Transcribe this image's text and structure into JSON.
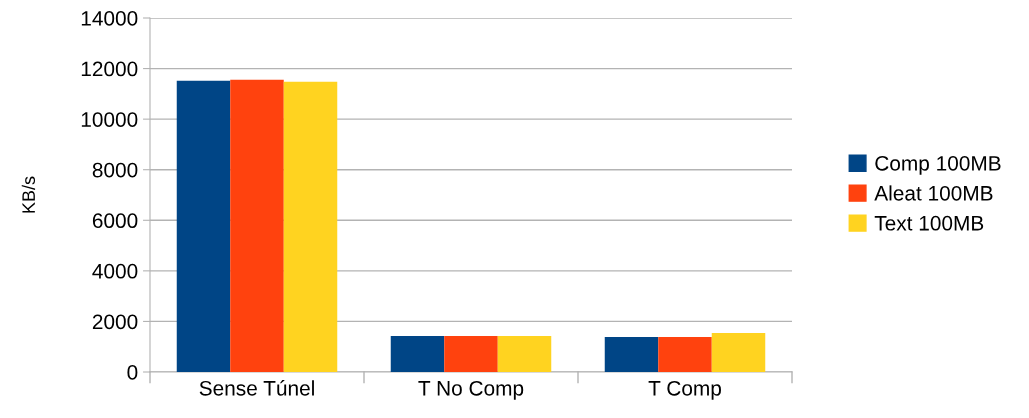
{
  "chart_data": {
    "type": "bar",
    "ylabel": "KB/s",
    "categories": [
      "Sense Túnel",
      "T No Comp",
      "T Comp"
    ],
    "series": [
      {
        "name": "Comp 100MB",
        "color": "#004586",
        "values": [
          11520,
          1420,
          1380
        ]
      },
      {
        "name": "Aleat 100MB",
        "color": "#ff420e",
        "values": [
          11560,
          1420,
          1380
        ]
      },
      {
        "name": "Text 100MB",
        "color": "#ffd320",
        "values": [
          11480,
          1420,
          1540
        ]
      }
    ],
    "ylim": [
      0,
      14000
    ],
    "yticks": [
      0,
      2000,
      4000,
      6000,
      8000,
      10000,
      12000,
      14000
    ],
    "grid": "y",
    "legend": "right"
  }
}
